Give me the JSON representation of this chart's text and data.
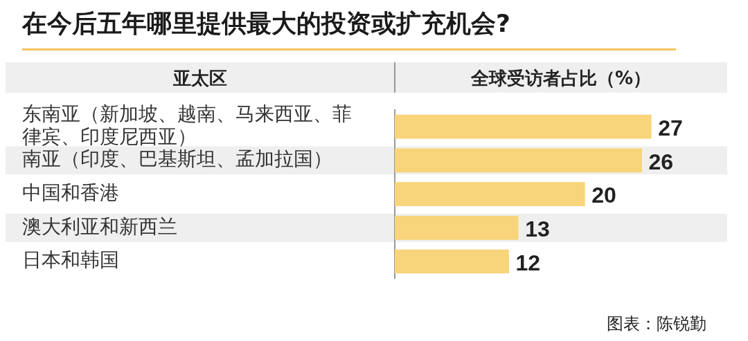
{
  "chart_data": {
    "type": "bar",
    "orientation": "horizontal",
    "title": "在今后五年哪里提供最大的投资或扩充机会?",
    "ylabel": "亚太区",
    "xlabel": "全球受访者占比（%）",
    "categories": [
      "东南亚（新加坡、越南、马来西亚、菲律宾、印度尼西亚）",
      "南亚（印度、巴基斯坦、孟加拉国）",
      "中国和香港",
      "澳大利亚和新西兰",
      "日本和韩国"
    ],
    "values": [
      27,
      26,
      20,
      13,
      12
    ],
    "color": "#f8d47a",
    "data_labels": true,
    "annotations": [
      "图表：陈锐勤"
    ]
  }
}
